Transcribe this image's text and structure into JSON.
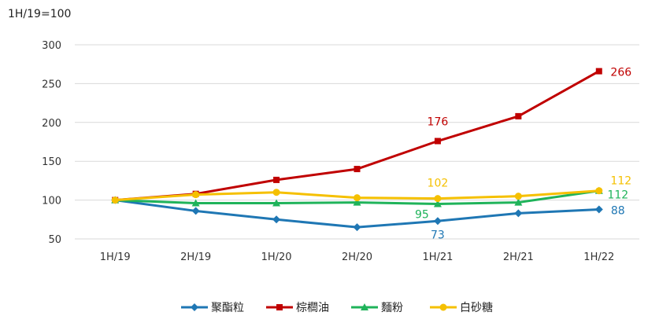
{
  "chart_data": {
    "type": "line",
    "index_note": "1H/19=100",
    "categories": [
      "1H/19",
      "2H/19",
      "1H/20",
      "2H/20",
      "1H/21",
      "2H/21",
      "1H/22"
    ],
    "ylim": [
      50,
      300
    ],
    "yticks": [
      50,
      100,
      150,
      200,
      250,
      300
    ],
    "grid": true,
    "legend_position": "bottom-center",
    "series": [
      {
        "name": "聚酯粒",
        "color": "#1f77b4",
        "marker": "diamond",
        "values": [
          100,
          86,
          75,
          65,
          73,
          83,
          88
        ],
        "labels": [
          {
            "index": 4,
            "text": "73"
          },
          {
            "index": 6,
            "text": "88"
          }
        ]
      },
      {
        "name": "棕櫚油",
        "color": "#c00000",
        "marker": "square",
        "values": [
          100,
          108,
          126,
          140,
          176,
          208,
          266
        ],
        "labels": [
          {
            "index": 4,
            "text": "176"
          },
          {
            "index": 6,
            "text": "266"
          }
        ]
      },
      {
        "name": "麵粉",
        "color": "#1fb35a",
        "marker": "triangle",
        "values": [
          100,
          96,
          96,
          97,
          95,
          97,
          112
        ],
        "labels": [
          {
            "index": 4,
            "text": "95"
          },
          {
            "index": 6,
            "text": "112"
          }
        ]
      },
      {
        "name": "白砂糖",
        "color": "#f5c000",
        "marker": "circle",
        "values": [
          100,
          107,
          110,
          103,
          102,
          105,
          112
        ],
        "labels": [
          {
            "index": 4,
            "text": "102"
          },
          {
            "index": 6,
            "text": "112"
          }
        ]
      }
    ]
  }
}
